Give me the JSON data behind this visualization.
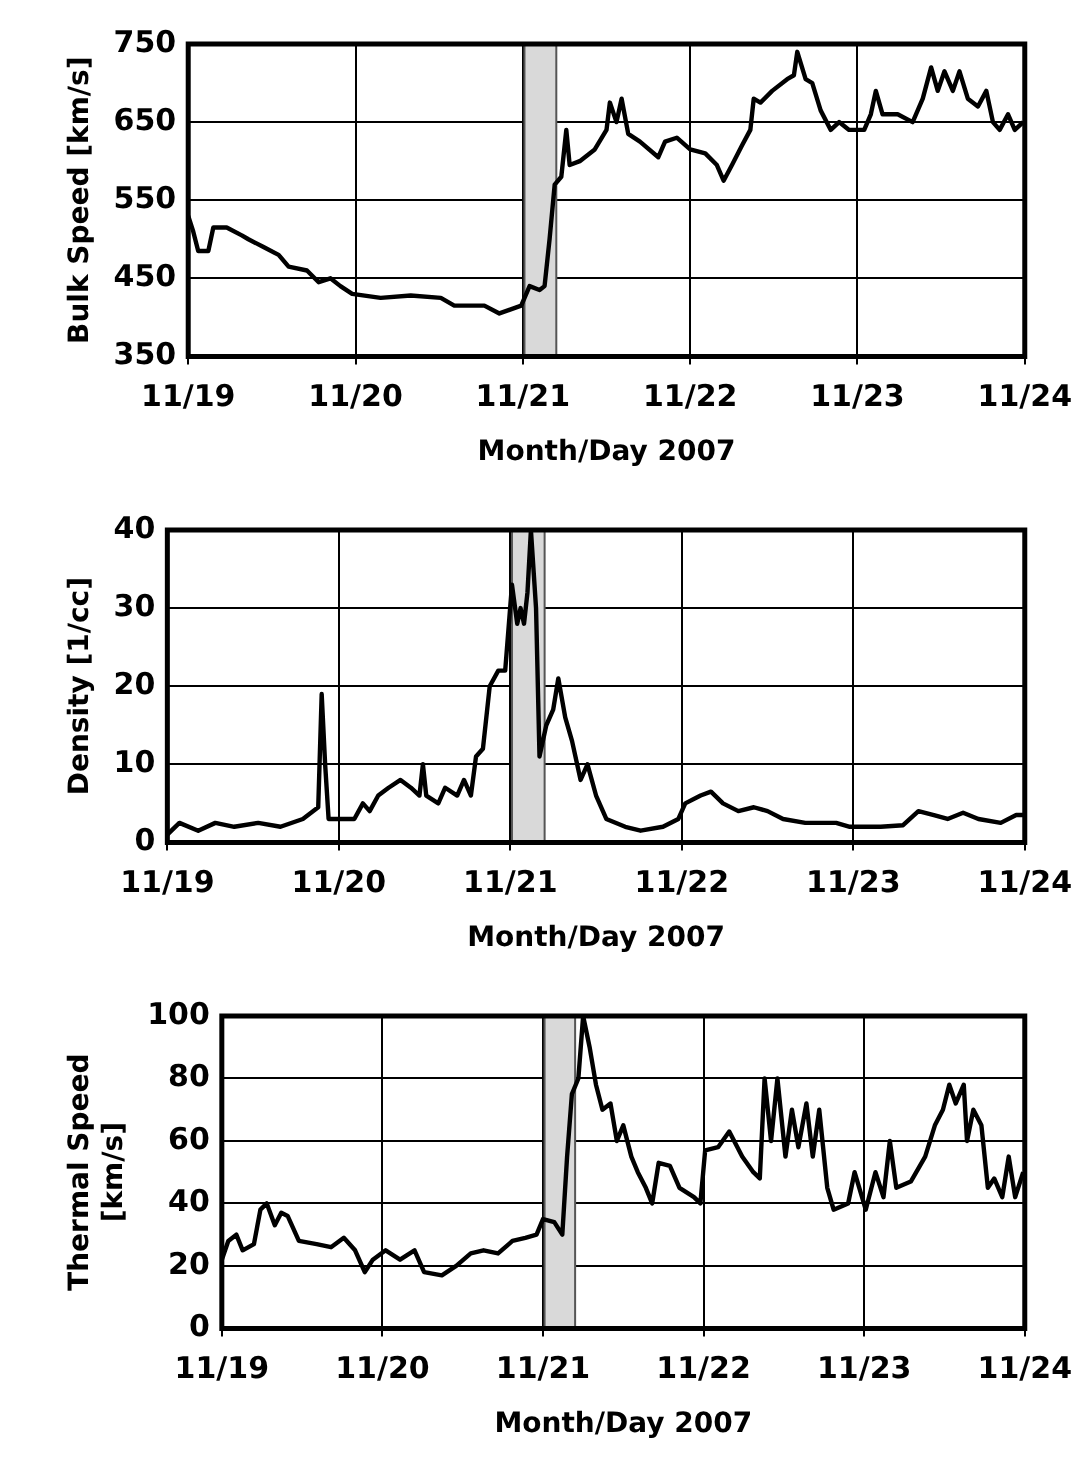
{
  "chart_data": [
    {
      "type": "line",
      "xlabel": "Month/Day 2007",
      "ylabel": "Bulk Speed [km/s]",
      "grid": true,
      "legend": false,
      "marker": "none",
      "line_style": "solid",
      "xlim": [
        "2007-11-19",
        "2007-11-24"
      ],
      "xticks": [
        {
          "value": "2007-11-19",
          "label": "11/19"
        },
        {
          "value": "2007-11-20",
          "label": "11/20"
        },
        {
          "value": "2007-11-21",
          "label": "11/21"
        },
        {
          "value": "2007-11-22",
          "label": "11/22"
        },
        {
          "value": "2007-11-23",
          "label": "11/23"
        },
        {
          "value": "2007-11-24",
          "label": "11/24"
        }
      ],
      "ylim": [
        350,
        750
      ],
      "yticks": [
        350,
        450,
        550,
        650,
        750
      ],
      "bands": [
        {
          "axis": "x",
          "from": "2007-11-21T00:14",
          "to": "2007-11-21T04:48",
          "color": "#d9d9d9"
        }
      ],
      "series": [
        {
          "color": "#000000",
          "x": [
            "2007-11-19T00:00",
            "2007-11-19T00:43",
            "2007-11-19T01:26",
            "2007-11-19T02:53",
            "2007-11-19T03:36",
            "2007-11-19T05:31",
            "2007-11-19T07:41",
            "2007-11-19T08:38",
            "2007-11-19T10:48",
            "2007-11-19T12:58",
            "2007-11-19T14:24",
            "2007-11-19T17:02",
            "2007-11-19T18:43",
            "2007-11-19T20:24",
            "2007-11-19T21:50",
            "2007-11-19T23:31",
            "2007-11-20T03:36",
            "2007-11-20T07:55",
            "2007-11-20T12:14",
            "2007-11-20T14:10",
            "2007-11-20T18:29",
            "2007-11-20T20:38",
            "2007-11-20T23:46",
            "2007-11-21T00:58",
            "2007-11-21T02:24",
            "2007-11-21T03:07",
            "2007-11-21T03:50",
            "2007-11-21T04:34",
            "2007-11-21T05:31",
            "2007-11-21T06:14",
            "2007-11-21T06:43",
            "2007-11-21T08:10",
            "2007-11-21T10:19",
            "2007-11-21T12:00",
            "2007-11-21T12:29",
            "2007-11-21T13:26",
            "2007-11-21T14:10",
            "2007-11-21T15:07",
            "2007-11-21T16:48",
            "2007-11-21T19:26",
            "2007-11-21T20:24",
            "2007-11-21T22:05",
            "2007-11-22T00:00",
            "2007-11-22T02:10",
            "2007-11-22T03:50",
            "2007-11-22T04:48",
            "2007-11-22T06:00",
            "2007-11-22T07:26",
            "2007-11-22T08:38",
            "2007-11-22T09:07",
            "2007-11-22T10:05",
            "2007-11-22T11:46",
            "2007-11-22T13:55",
            "2007-11-22T14:53",
            "2007-11-22T15:22",
            "2007-11-22T16:34",
            "2007-11-22T17:31",
            "2007-11-22T18:43",
            "2007-11-22T20:10",
            "2007-11-22T21:22",
            "2007-11-22T22:48",
            "2007-11-23T00:58",
            "2007-11-23T01:55",
            "2007-11-23T02:38",
            "2007-11-23T03:36",
            "2007-11-23T05:46",
            "2007-11-23T07:55",
            "2007-11-23T09:22",
            "2007-11-23T10:34",
            "2007-11-23T11:31",
            "2007-11-23T12:29",
            "2007-11-23T13:41",
            "2007-11-23T14:38",
            "2007-11-23T15:50",
            "2007-11-23T17:17",
            "2007-11-23T18:29",
            "2007-11-23T19:26",
            "2007-11-23T20:24",
            "2007-11-23T21:36",
            "2007-11-23T22:34",
            "2007-11-23T23:46"
          ],
          "values": [
            530,
            510,
            485,
            485,
            515,
            515,
            505,
            500,
            490,
            480,
            465,
            460,
            445,
            450,
            440,
            430,
            425,
            428,
            425,
            415,
            415,
            405,
            415,
            440,
            435,
            440,
            500,
            570,
            580,
            640,
            595,
            600,
            615,
            640,
            675,
            650,
            680,
            635,
            625,
            605,
            625,
            630,
            615,
            610,
            595,
            575,
            595,
            620,
            640,
            680,
            675,
            690,
            705,
            710,
            740,
            705,
            700,
            665,
            640,
            650,
            640,
            640,
            660,
            690,
            660,
            660,
            650,
            680,
            720,
            690,
            715,
            690,
            715,
            680,
            670,
            690,
            650,
            640,
            660,
            640,
            650
          ]
        }
      ]
    },
    {
      "type": "line",
      "xlabel": "Month/Day 2007",
      "ylabel": "Density [1/cc]",
      "grid": true,
      "legend": false,
      "marker": "none",
      "line_style": "solid",
      "xlim": [
        "2007-11-19",
        "2007-11-24"
      ],
      "xticks": [
        {
          "value": "2007-11-19",
          "label": "11/19"
        },
        {
          "value": "2007-11-20",
          "label": "11/20"
        },
        {
          "value": "2007-11-21",
          "label": "11/21"
        },
        {
          "value": "2007-11-22",
          "label": "11/22"
        },
        {
          "value": "2007-11-23",
          "label": "11/23"
        },
        {
          "value": "2007-11-24",
          "label": "11/24"
        }
      ],
      "ylim": [
        0,
        40
      ],
      "yticks": [
        0,
        10,
        20,
        30,
        40
      ],
      "bands": [
        {
          "axis": "x",
          "from": "2007-11-21T00:14",
          "to": "2007-11-21T04:48",
          "color": "#d9d9d9"
        }
      ],
      "series": [
        {
          "color": "#000000",
          "x": [
            "2007-11-19T00:00",
            "2007-11-19T01:41",
            "2007-11-19T04:19",
            "2007-11-19T06:43",
            "2007-11-19T09:22",
            "2007-11-19T12:43",
            "2007-11-19T15:50",
            "2007-11-19T18:58",
            "2007-11-19T21:07",
            "2007-11-19T21:36",
            "2007-11-19T22:05",
            "2007-11-19T22:34",
            "2007-11-20T00:14",
            "2007-11-20T02:10",
            "2007-11-20T03:22",
            "2007-11-20T04:19",
            "2007-11-20T05:31",
            "2007-11-20T06:58",
            "2007-11-20T08:38",
            "2007-11-20T10:05",
            "2007-11-20T11:17",
            "2007-11-20T11:46",
            "2007-11-20T12:14",
            "2007-11-20T13:55",
            "2007-11-20T14:53",
            "2007-11-20T16:34",
            "2007-11-20T17:31",
            "2007-11-20T18:29",
            "2007-11-20T19:12",
            "2007-11-20T20:10",
            "2007-11-20T21:07",
            "2007-11-20T22:19",
            "2007-11-20T23:17",
            "2007-11-21T00:14",
            "2007-11-21T00:58",
            "2007-11-21T01:26",
            "2007-11-21T01:55",
            "2007-11-21T02:24",
            "2007-11-21T02:53",
            "2007-11-21T03:36",
            "2007-11-21T04:05",
            "2007-11-21T05:02",
            "2007-11-21T06:00",
            "2007-11-21T06:43",
            "2007-11-21T07:41",
            "2007-11-21T08:38",
            "2007-11-21T09:50",
            "2007-11-21T10:48",
            "2007-11-21T12:00",
            "2007-11-21T13:26",
            "2007-11-21T16:05",
            "2007-11-21T18:14",
            "2007-11-21T21:22",
            "2007-11-21T23:31",
            "2007-11-22T00:29",
            "2007-11-22T02:38",
            "2007-11-22T04:05",
            "2007-11-22T05:46",
            "2007-11-22T07:55",
            "2007-11-22T10:05",
            "2007-11-22T12:00",
            "2007-11-22T14:10",
            "2007-11-22T17:17",
            "2007-11-22T21:36",
            "2007-11-22T23:31",
            "2007-11-23T03:50",
            "2007-11-23T06:58",
            "2007-11-23T09:07",
            "2007-11-23T11:17",
            "2007-11-23T13:12",
            "2007-11-23T15:22",
            "2007-11-23T17:31",
            "2007-11-23T20:38",
            "2007-11-23T22:48",
            "2007-11-23T23:46"
          ],
          "values": [
            1,
            2.5,
            1.5,
            2.5,
            2,
            2.5,
            2,
            3,
            4.5,
            19,
            10,
            3,
            3,
            3,
            5,
            4,
            6,
            7,
            8,
            7,
            6,
            10,
            6,
            5,
            7,
            6,
            8,
            6,
            11,
            12,
            20,
            22,
            22,
            33,
            28,
            30,
            28,
            32,
            40,
            30,
            11,
            15,
            17,
            21,
            16,
            13,
            8,
            10,
            6,
            3,
            2,
            1.5,
            2,
            3,
            5,
            6,
            6.5,
            5,
            4,
            4.5,
            4,
            3,
            2.5,
            2.5,
            2,
            2,
            2.2,
            4,
            3.5,
            3,
            3.8,
            3,
            2.5,
            3.5,
            3.5
          ]
        }
      ]
    },
    {
      "type": "line",
      "xlabel": "Month/Day 2007",
      "ylabel": "Thermal Speed\n[km/s]",
      "grid": true,
      "legend": false,
      "marker": "none",
      "line_style": "solid",
      "xlim": [
        "2007-11-19",
        "2007-11-24"
      ],
      "xticks": [
        {
          "value": "2007-11-19",
          "label": "11/19"
        },
        {
          "value": "2007-11-20",
          "label": "11/20"
        },
        {
          "value": "2007-11-21",
          "label": "11/21"
        },
        {
          "value": "2007-11-22",
          "label": "11/22"
        },
        {
          "value": "2007-11-23",
          "label": "11/23"
        },
        {
          "value": "2007-11-24",
          "label": "11/24"
        }
      ],
      "ylim": [
        0,
        100
      ],
      "yticks": [
        0,
        20,
        40,
        60,
        80,
        100
      ],
      "bands": [
        {
          "axis": "x",
          "from": "2007-11-21T00:14",
          "to": "2007-11-21T04:48",
          "color": "#d9d9d9"
        }
      ],
      "series": [
        {
          "color": "#000000",
          "x": [
            "2007-11-19T00:00",
            "2007-11-19T00:58",
            "2007-11-19T02:10",
            "2007-11-19T03:07",
            "2007-11-19T04:48",
            "2007-11-19T05:46",
            "2007-11-19T06:43",
            "2007-11-19T07:55",
            "2007-11-19T08:53",
            "2007-11-19T09:50",
            "2007-11-19T11:31",
            "2007-11-19T14:10",
            "2007-11-19T16:19",
            "2007-11-19T18:14",
            "2007-11-19T19:55",
            "2007-11-19T21:22",
            "2007-11-19T22:34",
            "2007-11-20T00:29",
            "2007-11-20T02:38",
            "2007-11-20T04:48",
            "2007-11-20T06:14",
            "2007-11-20T08:53",
            "2007-11-20T11:02",
            "2007-11-20T13:12",
            "2007-11-20T15:07",
            "2007-11-20T17:17",
            "2007-11-20T19:26",
            "2007-11-20T21:22",
            "2007-11-20T23:02",
            "2007-11-21T00:00",
            "2007-11-21T01:41",
            "2007-11-21T02:53",
            "2007-11-21T03:36",
            "2007-11-21T04:19",
            "2007-11-21T05:17",
            "2007-11-21T06:00",
            "2007-11-21T06:58",
            "2007-11-21T07:55",
            "2007-11-21T08:53",
            "2007-11-21T10:05",
            "2007-11-21T11:02",
            "2007-11-21T12:00",
            "2007-11-21T13:12",
            "2007-11-21T14:10",
            "2007-11-21T15:22",
            "2007-11-21T16:19",
            "2007-11-21T17:17",
            "2007-11-21T18:58",
            "2007-11-21T20:24",
            "2007-11-21T22:34",
            "2007-11-21T23:31",
            "2007-11-22T00:14",
            "2007-11-22T02:10",
            "2007-11-22T03:50",
            "2007-11-22T05:46",
            "2007-11-22T07:26",
            "2007-11-22T08:24",
            "2007-11-22T09:07",
            "2007-11-22T10:05",
            "2007-11-22T11:02",
            "2007-11-22T12:14",
            "2007-11-22T13:12",
            "2007-11-22T14:10",
            "2007-11-22T15:22",
            "2007-11-22T16:19",
            "2007-11-22T17:17",
            "2007-11-22T18:29",
            "2007-11-22T19:26",
            "2007-11-22T21:36",
            "2007-11-22T22:34",
            "2007-11-23T00:14",
            "2007-11-23T01:41",
            "2007-11-23T02:53",
            "2007-11-23T03:50",
            "2007-11-23T04:48",
            "2007-11-23T06:58",
            "2007-11-23T09:07",
            "2007-11-23T10:34",
            "2007-11-23T11:46",
            "2007-11-23T12:43",
            "2007-11-23T13:41",
            "2007-11-23T14:53",
            "2007-11-23T15:22",
            "2007-11-23T16:19",
            "2007-11-23T17:31",
            "2007-11-23T18:29",
            "2007-11-23T19:26",
            "2007-11-23T20:38",
            "2007-11-23T21:36",
            "2007-11-23T22:34",
            "2007-11-23T23:46"
          ],
          "values": [
            22,
            28,
            30,
            25,
            27,
            38,
            40,
            33,
            37,
            36,
            28,
            27,
            26,
            29,
            25,
            18,
            22,
            25,
            22,
            25,
            18,
            17,
            20,
            24,
            25,
            24,
            28,
            29,
            30,
            35,
            34,
            30,
            55,
            75,
            80,
            100,
            90,
            78,
            70,
            72,
            60,
            65,
            55,
            50,
            45,
            40,
            53,
            52,
            45,
            42,
            40,
            57,
            58,
            63,
            55,
            50,
            48,
            80,
            60,
            80,
            55,
            70,
            58,
            72,
            55,
            70,
            45,
            38,
            40,
            50,
            38,
            50,
            42,
            60,
            45,
            47,
            55,
            65,
            70,
            78,
            72,
            78,
            60,
            70,
            65,
            45,
            48,
            42,
            55,
            42,
            50
          ]
        }
      ]
    }
  ]
}
